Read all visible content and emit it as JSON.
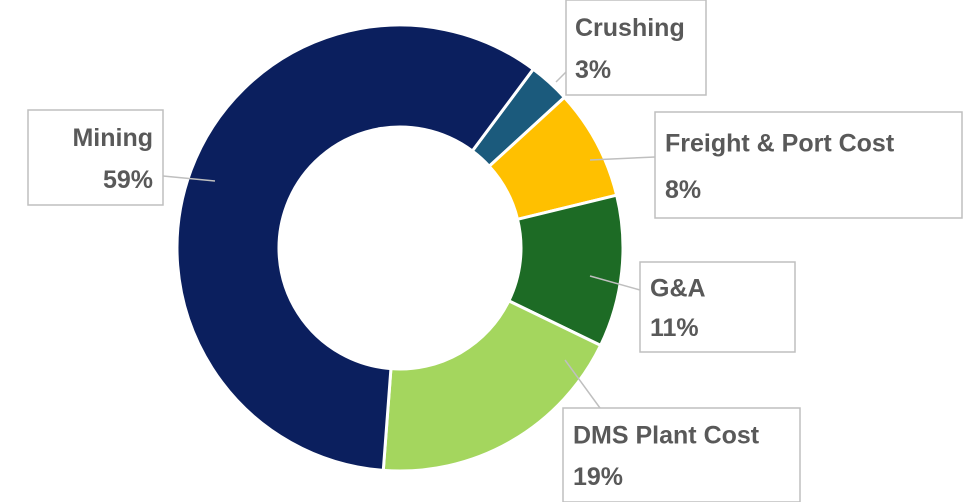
{
  "chart_data": {
    "type": "donut",
    "categories": [
      "Crushing",
      "Freight & Port Cost",
      "G&A",
      "DMS Plant Cost",
      "Mining"
    ],
    "values": [
      3,
      8,
      11,
      19,
      59
    ],
    "value_labels": [
      "3%",
      "8%",
      "11%",
      "19%",
      "59%"
    ],
    "colors": [
      "#1b5a7c",
      "#ffc000",
      "#1d6b25",
      "#a4d65e",
      "#0b1f5e"
    ]
  }
}
